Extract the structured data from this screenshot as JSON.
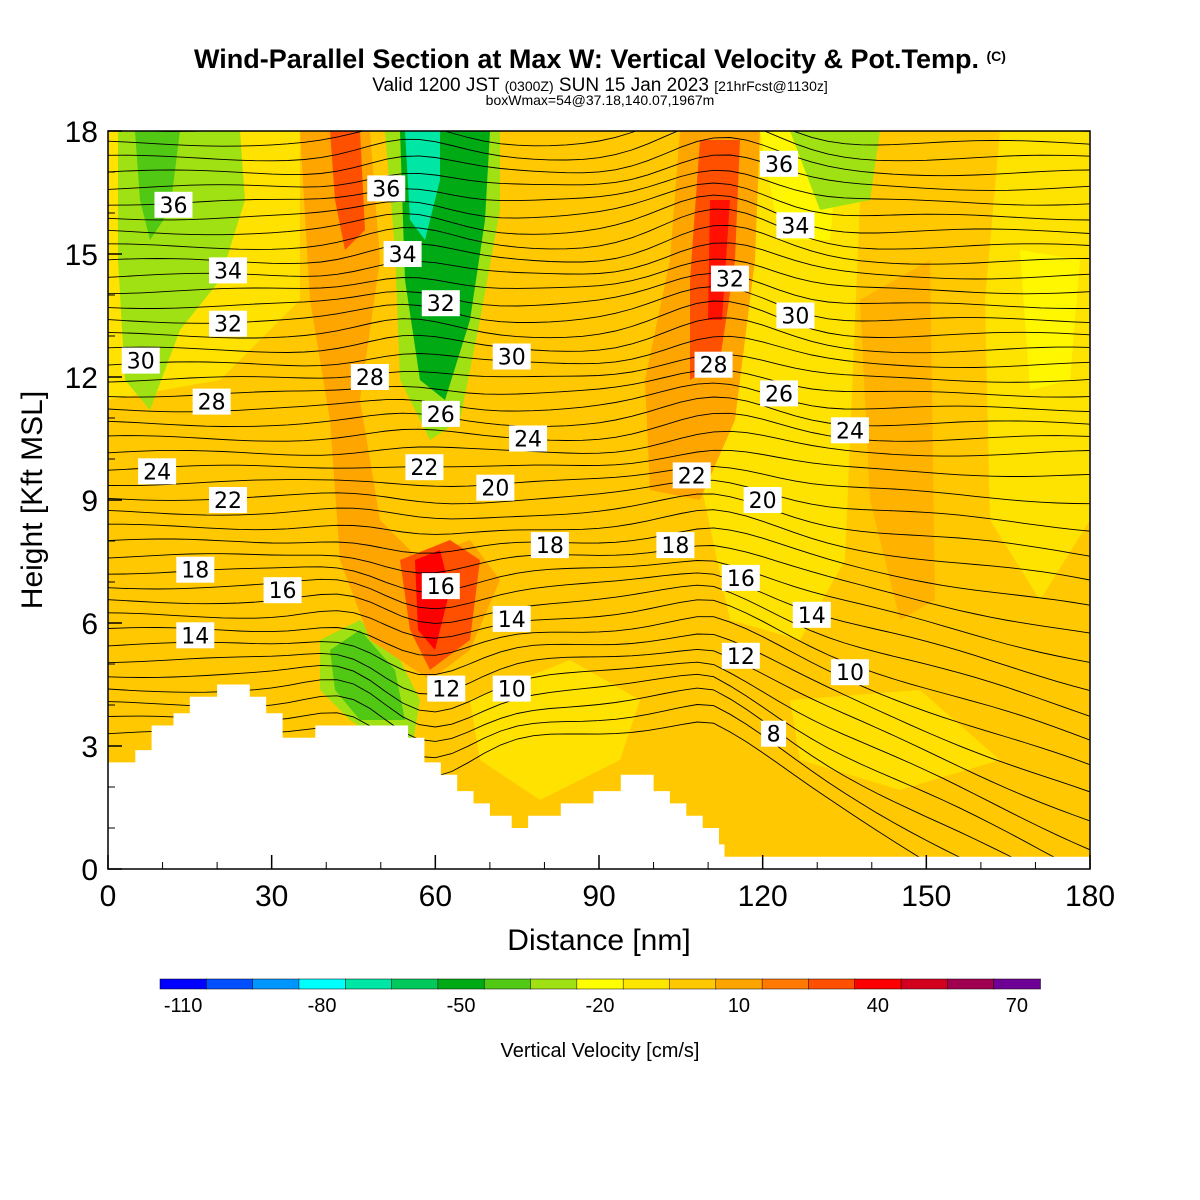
{
  "header": {
    "title": "Wind-Parallel Section at Max W: Vertical Velocity & Pot.Temp.",
    "copyright": "(C)",
    "valid_prefix": "Valid 1200 JST",
    "valid_utc": "(0300Z)",
    "valid_date": "SUN 15 Jan 2023",
    "forecast": "[21hrFcst@1130z]",
    "box_info": "boxWmax=54@37.18,140.07,1967m"
  },
  "colorbar": {
    "label": "Vertical Velocity [cm/s]",
    "tick_labels": [
      "-110",
      "-80",
      "-50",
      "-20",
      "10",
      "40",
      "70"
    ],
    "colors": [
      "#0000ff",
      "#0050ff",
      "#0096ff",
      "#00ffff",
      "#00e6a5",
      "#00c85a",
      "#00aa14",
      "#50c814",
      "#a0e114",
      "#ffff00",
      "#ffe600",
      "#ffc800",
      "#ffa500",
      "#ff7800",
      "#ff5000",
      "#ff0000",
      "#d2001e",
      "#a00050",
      "#6e0096"
    ]
  },
  "chart_data": {
    "type": "contour",
    "xlabel": "Distance [nm]",
    "ylabel": "Height [Kft MSL]",
    "xlim": [
      0,
      180
    ],
    "ylim": [
      0,
      18
    ],
    "x_ticks": [
      "0",
      "30",
      "60",
      "90",
      "120",
      "150",
      "180"
    ],
    "y_ticks": [
      "0",
      "3",
      "6",
      "9",
      "12",
      "15",
      "18"
    ],
    "fill_variable": "Vertical Velocity [cm/s]",
    "contour_variable": "Pot.Temp.",
    "contour_labels": [
      {
        "text": "36",
        "x": 12,
        "y": 16.2
      },
      {
        "text": "34",
        "x": 22,
        "y": 14.6
      },
      {
        "text": "32",
        "x": 22,
        "y": 13.3
      },
      {
        "text": "30",
        "x": 6,
        "y": 12.4
      },
      {
        "text": "28",
        "x": 19,
        "y": 11.4
      },
      {
        "text": "24",
        "x": 9,
        "y": 9.7
      },
      {
        "text": "22",
        "x": 22,
        "y": 9.0
      },
      {
        "text": "18",
        "x": 16,
        "y": 7.3
      },
      {
        "text": "16",
        "x": 32,
        "y": 6.8
      },
      {
        "text": "14",
        "x": 16,
        "y": 5.7
      },
      {
        "text": "36",
        "x": 51,
        "y": 16.6
      },
      {
        "text": "34",
        "x": 54,
        "y": 15.0
      },
      {
        "text": "32",
        "x": 61,
        "y": 13.8
      },
      {
        "text": "30",
        "x": 74,
        "y": 12.5
      },
      {
        "text": "28",
        "x": 48,
        "y": 12.0
      },
      {
        "text": "26",
        "x": 61,
        "y": 11.1
      },
      {
        "text": "24",
        "x": 77,
        "y": 10.5
      },
      {
        "text": "22",
        "x": 58,
        "y": 9.8
      },
      {
        "text": "20",
        "x": 71,
        "y": 9.3
      },
      {
        "text": "18",
        "x": 81,
        "y": 7.9
      },
      {
        "text": "16",
        "x": 61,
        "y": 6.9
      },
      {
        "text": "14",
        "x": 74,
        "y": 6.1
      },
      {
        "text": "12",
        "x": 62,
        "y": 4.4
      },
      {
        "text": "10",
        "x": 74,
        "y": 4.4
      },
      {
        "text": "36",
        "x": 123,
        "y": 17.2
      },
      {
        "text": "34",
        "x": 126,
        "y": 15.7
      },
      {
        "text": "32",
        "x": 114,
        "y": 14.4
      },
      {
        "text": "30",
        "x": 126,
        "y": 13.5
      },
      {
        "text": "28",
        "x": 111,
        "y": 12.3
      },
      {
        "text": "26",
        "x": 123,
        "y": 11.6
      },
      {
        "text": "24",
        "x": 136,
        "y": 10.7
      },
      {
        "text": "22",
        "x": 107,
        "y": 9.6
      },
      {
        "text": "20",
        "x": 120,
        "y": 9.0
      },
      {
        "text": "18",
        "x": 104,
        "y": 7.9
      },
      {
        "text": "16",
        "x": 116,
        "y": 7.1
      },
      {
        "text": "14",
        "x": 129,
        "y": 6.2
      },
      {
        "text": "12",
        "x": 116,
        "y": 5.2
      },
      {
        "text": "10",
        "x": 136,
        "y": 4.8
      },
      {
        "text": "8",
        "x": 122,
        "y": 3.3
      }
    ],
    "grid": false
  }
}
